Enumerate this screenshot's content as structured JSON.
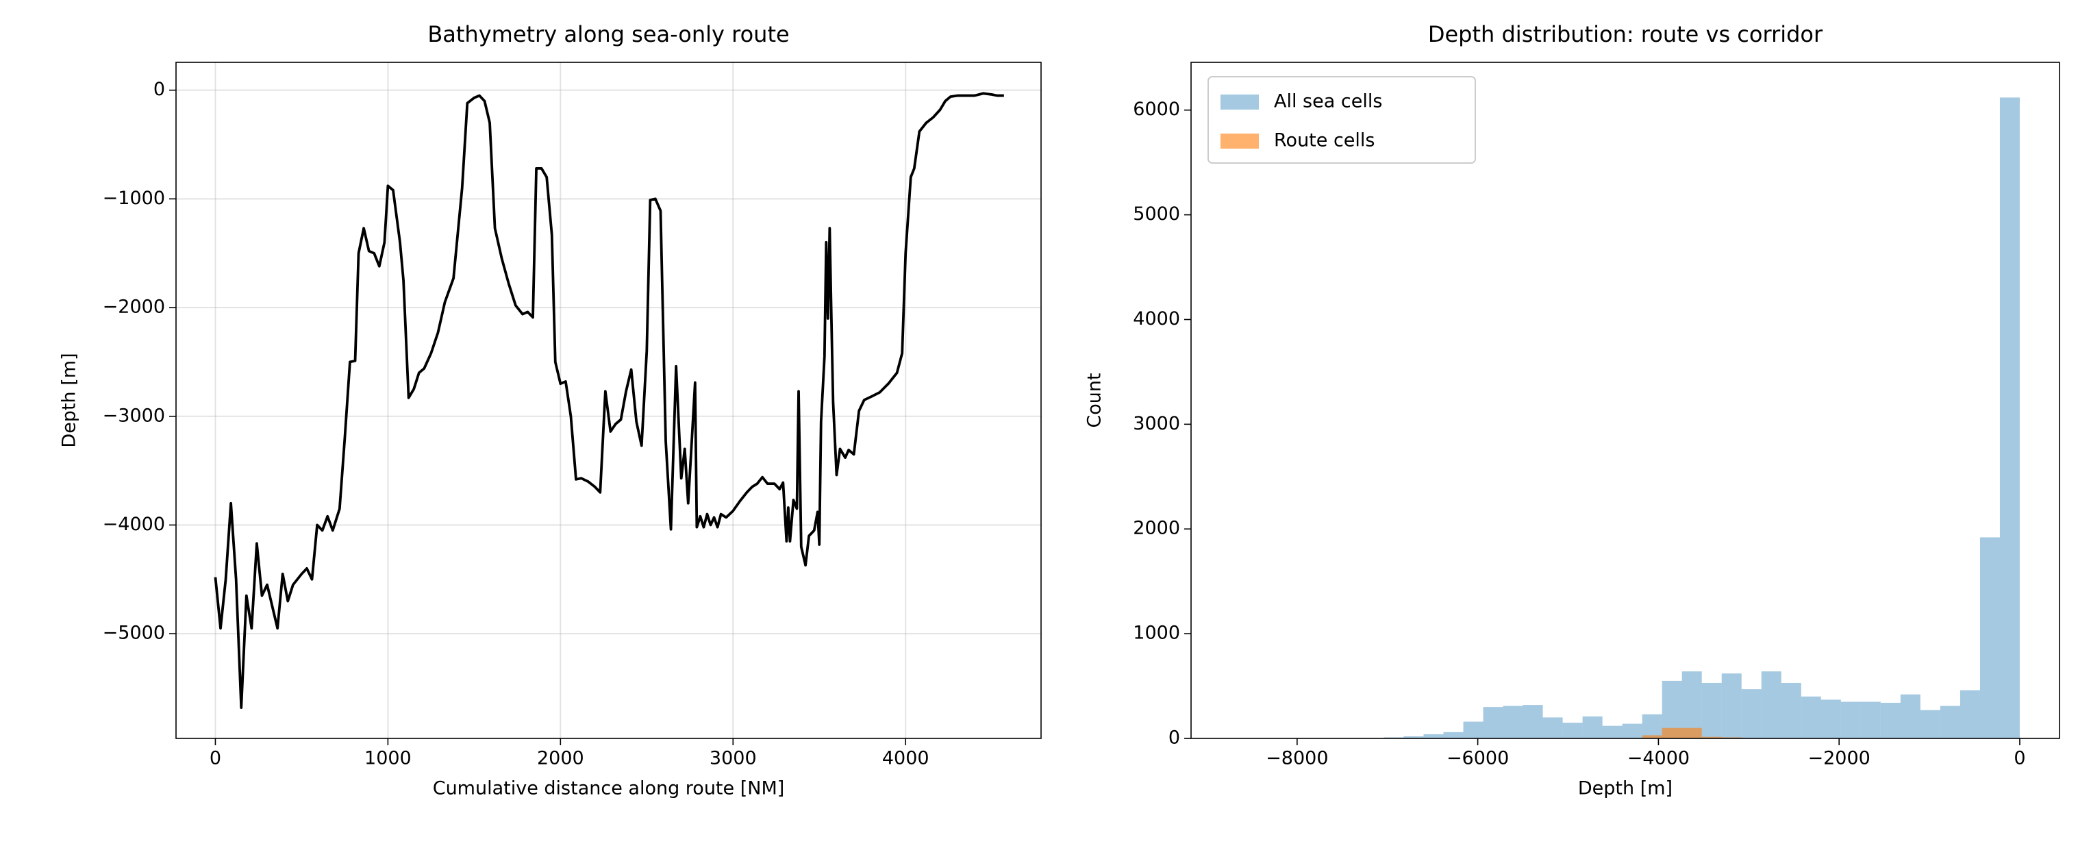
{
  "chart_data": [
    {
      "type": "line",
      "title": "Bathymetry along sea-only route",
      "xlabel": "Cumulative distance along route [NM]",
      "ylabel": "Depth [m]",
      "grid": true,
      "xlim": [
        -228,
        4785
      ],
      "ylim": [
        -5963,
        256
      ],
      "xticks": [
        0,
        1000,
        2000,
        3000,
        4000
      ],
      "yticks": [
        {
          "value": -5000,
          "label": "−5000"
        },
        {
          "value": -4000,
          "label": "−4000"
        },
        {
          "value": -3000,
          "label": "−3000"
        },
        {
          "value": -2000,
          "label": "−2000"
        },
        {
          "value": -1000,
          "label": "−1000"
        },
        0
      ],
      "series": [
        {
          "color": "#000000",
          "x": [
            0,
            30,
            60,
            90,
            120,
            150,
            180,
            210,
            240,
            270,
            300,
            330,
            360,
            390,
            420,
            450,
            500,
            530,
            560,
            590,
            620,
            650,
            680,
            720,
            750,
            780,
            810,
            830,
            860,
            890,
            920,
            950,
            980,
            1000,
            1030,
            1070,
            1090,
            1120,
            1150,
            1180,
            1210,
            1250,
            1290,
            1330,
            1380,
            1430,
            1460,
            1500,
            1530,
            1560,
            1590,
            1620,
            1660,
            1700,
            1740,
            1780,
            1810,
            1840,
            1860,
            1890,
            1920,
            1950,
            1970,
            2000,
            2030,
            2060,
            2090,
            2120,
            2160,
            2200,
            2230,
            2260,
            2290,
            2320,
            2350,
            2380,
            2410,
            2440,
            2470,
            2500,
            2520,
            2550,
            2580,
            2610,
            2640,
            2670,
            2700,
            2720,
            2740,
            2760,
            2780,
            2790,
            2810,
            2830,
            2850,
            2870,
            2890,
            2910,
            2930,
            2960,
            3000,
            3040,
            3080,
            3110,
            3140,
            3170,
            3200,
            3240,
            3270,
            3290,
            3310,
            3320,
            3330,
            3350,
            3370,
            3380,
            3395,
            3420,
            3440,
            3470,
            3490,
            3500,
            3510,
            3530,
            3540,
            3550,
            3560,
            3570,
            3580,
            3600,
            3620,
            3650,
            3670,
            3700,
            3730,
            3760,
            3800,
            3850,
            3900,
            3950,
            3980,
            4000,
            4030,
            4050,
            4080,
            4120,
            4160,
            4200,
            4230,
            4260,
            4300,
            4350,
            4400,
            4450,
            4500,
            4530,
            4570
          ],
          "values": [
            -4480,
            -4950,
            -4500,
            -3800,
            -4500,
            -5680,
            -4650,
            -4950,
            -4170,
            -4650,
            -4550,
            -4750,
            -4950,
            -4450,
            -4700,
            -4550,
            -4450,
            -4400,
            -4500,
            -4000,
            -4050,
            -3920,
            -4050,
            -3850,
            -3200,
            -2500,
            -2490,
            -1500,
            -1270,
            -1480,
            -1500,
            -1620,
            -1400,
            -880,
            -920,
            -1400,
            -1750,
            -2830,
            -2750,
            -2600,
            -2560,
            -2420,
            -2230,
            -1950,
            -1730,
            -900,
            -120,
            -70,
            -50,
            -100,
            -300,
            -1270,
            -1550,
            -1780,
            -1980,
            -2060,
            -2040,
            -2090,
            -720,
            -720,
            -800,
            -1330,
            -2500,
            -2700,
            -2680,
            -3000,
            -3580,
            -3570,
            -3600,
            -3650,
            -3700,
            -2770,
            -3140,
            -3070,
            -3030,
            -2770,
            -2570,
            -3050,
            -3270,
            -2400,
            -1010,
            -1000,
            -1110,
            -3230,
            -4040,
            -2540,
            -3570,
            -3300,
            -3800,
            -3250,
            -2690,
            -4020,
            -3920,
            -4020,
            -3900,
            -4000,
            -3930,
            -4020,
            -3900,
            -3930,
            -3870,
            -3780,
            -3700,
            -3650,
            -3620,
            -3560,
            -3620,
            -3620,
            -3670,
            -3610,
            -4150,
            -3840,
            -4150,
            -3770,
            -3850,
            -2770,
            -4200,
            -4370,
            -4100,
            -4050,
            -3880,
            -4180,
            -3050,
            -2450,
            -1400,
            -2100,
            -1270,
            -2100,
            -2870,
            -3540,
            -3300,
            -3380,
            -3310,
            -3350,
            -2950,
            -2850,
            -2820,
            -2780,
            -2700,
            -2600,
            -2420,
            -1500,
            -800,
            -720,
            -380,
            -300,
            -250,
            -180,
            -100,
            -60,
            -50,
            -50,
            -50,
            -30,
            -40,
            -50,
            -50
          ]
        }
      ]
    },
    {
      "type": "histogram",
      "title": "Depth distribution: route vs corridor",
      "xlabel": "Depth [m]",
      "ylabel": "Count",
      "grid": false,
      "legend": "upper left",
      "xlim": [
        -9174,
        440
      ],
      "ylim": [
        0,
        6456
      ],
      "xticks": [
        {
          "value": -8000,
          "label": "−8000"
        },
        {
          "value": -6000,
          "label": "−6000"
        },
        {
          "value": -4000,
          "label": "−4000"
        },
        {
          "value": -2000,
          "label": "−2000"
        },
        0
      ],
      "yticks": [
        0,
        1000,
        2000,
        3000,
        4000,
        5000,
        6000
      ],
      "bins": [
        -8800,
        -8580,
        -8360,
        -8140,
        -7920,
        -7700,
        -7480,
        -7260,
        -7040,
        -6820,
        -6600,
        -6380,
        -6160,
        -5940,
        -5720,
        -5500,
        -5280,
        -5060,
        -4840,
        -4620,
        -4400,
        -4180,
        -3960,
        -3740,
        -3520,
        -3300,
        -3080,
        -2860,
        -2640,
        -2420,
        -2200,
        -1980,
        -1760,
        -1540,
        -1320,
        -1100,
        -880,
        -660,
        -440,
        -220,
        0
      ],
      "series": [
        {
          "name": "All sea cells",
          "color": "#1f77b4",
          "opacity": 0.4,
          "values": [
            3,
            3,
            3,
            3,
            3,
            3,
            3,
            3,
            10,
            20,
            40,
            60,
            160,
            300,
            310,
            320,
            200,
            150,
            210,
            120,
            140,
            230,
            550,
            640,
            530,
            620,
            470,
            640,
            530,
            400,
            370,
            350,
            350,
            340,
            420,
            270,
            310,
            460,
            1920,
            6120
          ]
        },
        {
          "name": "Route cells",
          "color": "#ff7f0e",
          "opacity": 0.6,
          "values": [
            0,
            0,
            0,
            0,
            0,
            0,
            0,
            0,
            0,
            0,
            0,
            0,
            0,
            0,
            0,
            0,
            0,
            0,
            0,
            0,
            0,
            30,
            100,
            100,
            15,
            10,
            0,
            0,
            0,
            0,
            0,
            0,
            0,
            0,
            0,
            0,
            0,
            0,
            0,
            0
          ]
        }
      ]
    }
  ]
}
